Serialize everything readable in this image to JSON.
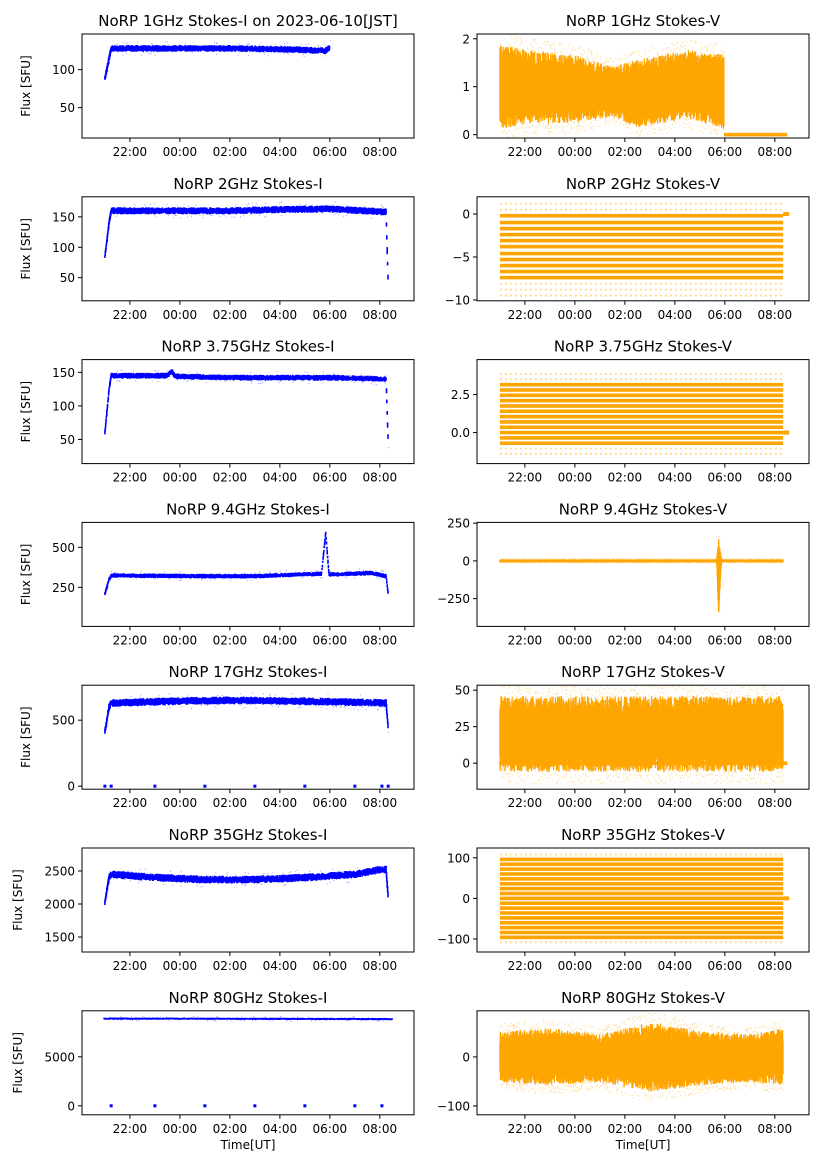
{
  "chart_data": [
    {
      "type": "scatter",
      "title": "NoRP 1GHz Stokes-I on 2023-06-10[JST]",
      "ylabel": "Flux [SFU]",
      "xlabel": "",
      "color": "#0000ff",
      "xlim": [
        "20:05",
        "09:22"
      ],
      "xticks": [
        "22:00",
        "00:00",
        "02:00",
        "04:00",
        "06:00",
        "08:00"
      ],
      "ylim": [
        10,
        147
      ],
      "yticks": [
        50,
        100
      ],
      "spread": 3,
      "points": [
        [
          "21:00",
          88
        ],
        [
          "21:10",
          115
        ],
        [
          "21:15",
          128
        ],
        [
          "00:00",
          128
        ],
        [
          "02:00",
          128
        ],
        [
          "04:00",
          127
        ],
        [
          "05:50",
          125
        ],
        [
          "06:00",
          129
        ]
      ]
    },
    {
      "type": "scatter",
      "title": "NoRP 1GHz Stokes-V",
      "ylabel": "",
      "xlabel": "",
      "color": "#ffa500",
      "xlim": [
        "20:05",
        "09:22"
      ],
      "xticks": [
        "22:00",
        "00:00",
        "02:00",
        "04:00",
        "06:00",
        "08:00"
      ],
      "ylim": [
        -0.07,
        2.1
      ],
      "yticks": [
        0,
        1,
        2
      ],
      "noisy_band": [
        [
          "21:00",
          0.3,
          1.7
        ],
        [
          "22:00",
          0.4,
          1.6
        ],
        [
          "00:00",
          0.4,
          1.5
        ],
        [
          "01:30",
          0.5,
          1.3
        ],
        [
          "02:30",
          0.3,
          1.4
        ],
        [
          "04:30",
          0.5,
          1.6
        ],
        [
          "05:58",
          0.3,
          1.5
        ]
      ],
      "zero_line": [
        "05:58",
        "08:30"
      ]
    },
    {
      "type": "scatter",
      "title": "NoRP 2GHz Stokes-I",
      "ylabel": "Flux [SFU]",
      "xlabel": "",
      "color": "#0000ff",
      "xlim": [
        "20:05",
        "09:22"
      ],
      "xticks": [
        "22:00",
        "00:00",
        "02:00",
        "04:00",
        "06:00",
        "08:00"
      ],
      "ylim": [
        12,
        183
      ],
      "yticks": [
        50,
        100,
        150
      ],
      "spread": 4,
      "points": [
        [
          "21:00",
          85
        ],
        [
          "21:10",
          140
        ],
        [
          "21:15",
          160
        ],
        [
          "00:00",
          160
        ],
        [
          "02:00",
          160
        ],
        [
          "04:00",
          162
        ],
        [
          "06:00",
          163
        ],
        [
          "08:15",
          158
        ],
        [
          "08:20",
          40
        ]
      ]
    },
    {
      "type": "scatter",
      "title": "NoRP 2GHz Stokes-V",
      "ylabel": "",
      "xlabel": "",
      "color": "#ffa500",
      "xlim": [
        "20:05",
        "09:22"
      ],
      "xticks": [
        "22:00",
        "00:00",
        "02:00",
        "04:00",
        "06:00",
        "08:00"
      ],
      "ylim": [
        -10.1,
        2
      ],
      "yticks": [
        -10,
        -5,
        0
      ],
      "range": [
        "21:00",
        "08:20"
      ],
      "levels": [
        -0.2,
        -1.0,
        -1.7,
        -2.4,
        -3.1,
        -3.8,
        -4.6,
        -5.3,
        -6.0,
        -6.7,
        -7.4
      ],
      "faint_levels": [
        1.2,
        0.5,
        -8.1,
        -8.8,
        -9.5
      ]
    },
    {
      "type": "scatter",
      "title": "NoRP 3.75GHz Stokes-I",
      "ylabel": "Flux [SFU]",
      "xlabel": "",
      "color": "#0000ff",
      "xlim": [
        "20:05",
        "09:22"
      ],
      "xticks": [
        "22:00",
        "00:00",
        "02:00",
        "04:00",
        "06:00",
        "08:00"
      ],
      "ylim": [
        14,
        169
      ],
      "yticks": [
        50,
        100,
        150
      ],
      "spread": 3,
      "points": [
        [
          "21:00",
          60
        ],
        [
          "21:10",
          125
        ],
        [
          "21:15",
          145
        ],
        [
          "23:30",
          145
        ],
        [
          "23:40",
          151
        ],
        [
          "23:50",
          144
        ],
        [
          "02:00",
          142
        ],
        [
          "04:00",
          142
        ],
        [
          "06:00",
          142
        ],
        [
          "08:15",
          140
        ],
        [
          "08:20",
          45
        ]
      ]
    },
    {
      "type": "scatter",
      "title": "NoRP 3.75GHz Stokes-V",
      "ylabel": "",
      "xlabel": "",
      "color": "#ffa500",
      "xlim": [
        "20:05",
        "09:22"
      ],
      "xticks": [
        "22:00",
        "00:00",
        "02:00",
        "04:00",
        "06:00",
        "08:00"
      ],
      "ylim": [
        -2.04,
        4.8
      ],
      "yticks": [
        0.0,
        2.5
      ],
      "range": [
        "21:00",
        "08:20"
      ],
      "levels": [
        -0.7,
        -0.35,
        0,
        0.35,
        0.7,
        1.05,
        1.4,
        1.75,
        2.1,
        2.45,
        2.8,
        3.15
      ],
      "faint_levels": [
        -1.4,
        -1.05,
        3.5,
        3.85
      ]
    },
    {
      "type": "scatter",
      "title": "NoRP 9.4GHz Stokes-I",
      "ylabel": "Flux [SFU]",
      "xlabel": "",
      "color": "#0000ff",
      "xlim": [
        "20:05",
        "09:22"
      ],
      "xticks": [
        "22:00",
        "00:00",
        "02:00",
        "04:00",
        "06:00",
        "08:00"
      ],
      "ylim": [
        6,
        656
      ],
      "yticks": [
        250,
        500
      ],
      "spread": 10,
      "points": [
        [
          "21:00",
          210
        ],
        [
          "21:10",
          300
        ],
        [
          "21:15",
          325
        ],
        [
          "23:00",
          322
        ],
        [
          "01:00",
          320
        ],
        [
          "03:00",
          320
        ],
        [
          "04:45",
          330
        ],
        [
          "05:40",
          335
        ],
        [
          "05:50",
          590
        ],
        [
          "05:58",
          330
        ],
        [
          "07:40",
          340
        ],
        [
          "08:15",
          320
        ],
        [
          "08:20",
          210
        ]
      ]
    },
    {
      "type": "scatter",
      "title": "NoRP 9.4GHz Stokes-V",
      "ylabel": "",
      "xlabel": "",
      "color": "#ffa500",
      "xlim": [
        "20:05",
        "09:22"
      ],
      "xticks": [
        "22:00",
        "00:00",
        "02:00",
        "04:00",
        "06:00",
        "08:00"
      ],
      "ylim": [
        -434,
        255
      ],
      "yticks": [
        -250,
        0,
        250
      ],
      "noisy_band": [
        [
          "21:00",
          -8,
          8
        ],
        [
          "05:40",
          -8,
          8
        ],
        [
          "05:45",
          -320,
          90
        ],
        [
          "05:52",
          -8,
          8
        ],
        [
          "08:20",
          -8,
          8
        ]
      ]
    },
    {
      "type": "scatter",
      "title": "NoRP 17GHz Stokes-I",
      "ylabel": "Flux [SFU]",
      "xlabel": "",
      "color": "#0000ff",
      "xlim": [
        "20:05",
        "09:22"
      ],
      "xticks": [
        "22:00",
        "00:00",
        "02:00",
        "04:00",
        "06:00",
        "08:00"
      ],
      "ylim": [
        -23,
        765
      ],
      "yticks": [
        0,
        500
      ],
      "spread": 20,
      "points": [
        [
          "21:00",
          410
        ],
        [
          "21:10",
          600
        ],
        [
          "21:15",
          630
        ],
        [
          "00:00",
          645
        ],
        [
          "02:00",
          650
        ],
        [
          "04:00",
          645
        ],
        [
          "06:00",
          640
        ],
        [
          "08:15",
          630
        ],
        [
          "08:20",
          450
        ]
      ],
      "zero_dots": [
        "21:00",
        "21:15",
        "23:00",
        "01:00",
        "03:00",
        "05:00",
        "07:00",
        "08:05",
        "08:20"
      ]
    },
    {
      "type": "scatter",
      "title": "NoRP 17GHz Stokes-V",
      "ylabel": "",
      "xlabel": "",
      "color": "#ffa500",
      "xlim": [
        "20:05",
        "09:22"
      ],
      "xticks": [
        "22:00",
        "00:00",
        "02:00",
        "04:00",
        "06:00",
        "08:00"
      ],
      "ylim": [
        -17.8,
        53.4
      ],
      "yticks": [
        0,
        25,
        50
      ],
      "noisy_band": [
        [
          "21:00",
          0,
          40
        ],
        [
          "02:00",
          0,
          40
        ],
        [
          "08:20",
          0,
          40
        ]
      ],
      "zero_line": [
        "20:58",
        "08:30"
      ]
    },
    {
      "type": "scatter",
      "title": "NoRP 35GHz Stokes-I",
      "ylabel": "Flux [SFU]",
      "xlabel": "",
      "color": "#0000ff",
      "xlim": [
        "20:05",
        "09:22"
      ],
      "xticks": [
        "22:00",
        "00:00",
        "02:00",
        "04:00",
        "06:00",
        "08:00"
      ],
      "ylim": [
        1273,
        2848
      ],
      "yticks": [
        1500,
        2000,
        2500
      ],
      "spread": 40,
      "points": [
        [
          "21:00",
          2020
        ],
        [
          "21:10",
          2400
        ],
        [
          "21:15",
          2450
        ],
        [
          "23:00",
          2400
        ],
        [
          "01:00",
          2370
        ],
        [
          "03:00",
          2370
        ],
        [
          "05:00",
          2400
        ],
        [
          "07:00",
          2450
        ],
        [
          "08:00",
          2520
        ],
        [
          "08:15",
          2520
        ],
        [
          "08:20",
          2100
        ]
      ]
    },
    {
      "type": "scatter",
      "title": "NoRP 35GHz Stokes-V",
      "ylabel": "",
      "xlabel": "",
      "color": "#ffa500",
      "xlim": [
        "20:05",
        "09:22"
      ],
      "xticks": [
        "22:00",
        "00:00",
        "02:00",
        "04:00",
        "06:00",
        "08:00"
      ],
      "ylim": [
        -132,
        124
      ],
      "yticks": [
        -100,
        0,
        100
      ],
      "range": [
        "21:00",
        "08:20"
      ],
      "levels": [
        -96,
        -84,
        -72,
        -60,
        -48,
        -36,
        -24,
        -12,
        0,
        12,
        24,
        36,
        48,
        60,
        72,
        84,
        96
      ],
      "faint_levels": [
        -108,
        108
      ]
    },
    {
      "type": "scatter",
      "title": "NoRP 80GHz Stokes-I",
      "ylabel": "Flux [SFU]",
      "xlabel": "Time[UT]",
      "color": "#0000ff",
      "xlim": [
        "20:05",
        "09:22"
      ],
      "xticks": [
        "22:00",
        "00:00",
        "02:00",
        "04:00",
        "06:00",
        "08:00"
      ],
      "ylim": [
        -918,
        9694
      ],
      "yticks": [
        0,
        5000
      ],
      "spread": 80,
      "points": [
        [
          "20:58",
          8900
        ],
        [
          "02:00",
          8880
        ],
        [
          "08:30",
          8850
        ]
      ],
      "zero_dots": [
        "21:15",
        "23:00",
        "01:00",
        "03:00",
        "05:00",
        "07:00",
        "08:05"
      ]
    },
    {
      "type": "scatter",
      "title": "NoRP 80GHz Stokes-V",
      "ylabel": "",
      "xlabel": "Time[UT]",
      "color": "#ffa500",
      "xlim": [
        "20:05",
        "09:22"
      ],
      "xticks": [
        "22:00",
        "00:00",
        "02:00",
        "04:00",
        "06:00",
        "08:00"
      ],
      "ylim": [
        -118,
        94
      ],
      "yticks": [
        -100,
        0
      ],
      "noisy_band": [
        [
          "21:00",
          -40,
          40
        ],
        [
          "23:00",
          -45,
          45
        ],
        [
          "01:00",
          -40,
          35
        ],
        [
          "03:00",
          -55,
          55
        ],
        [
          "05:00",
          -45,
          40
        ],
        [
          "07:00",
          -40,
          35
        ],
        [
          "08:20",
          -45,
          45
        ]
      ]
    }
  ]
}
